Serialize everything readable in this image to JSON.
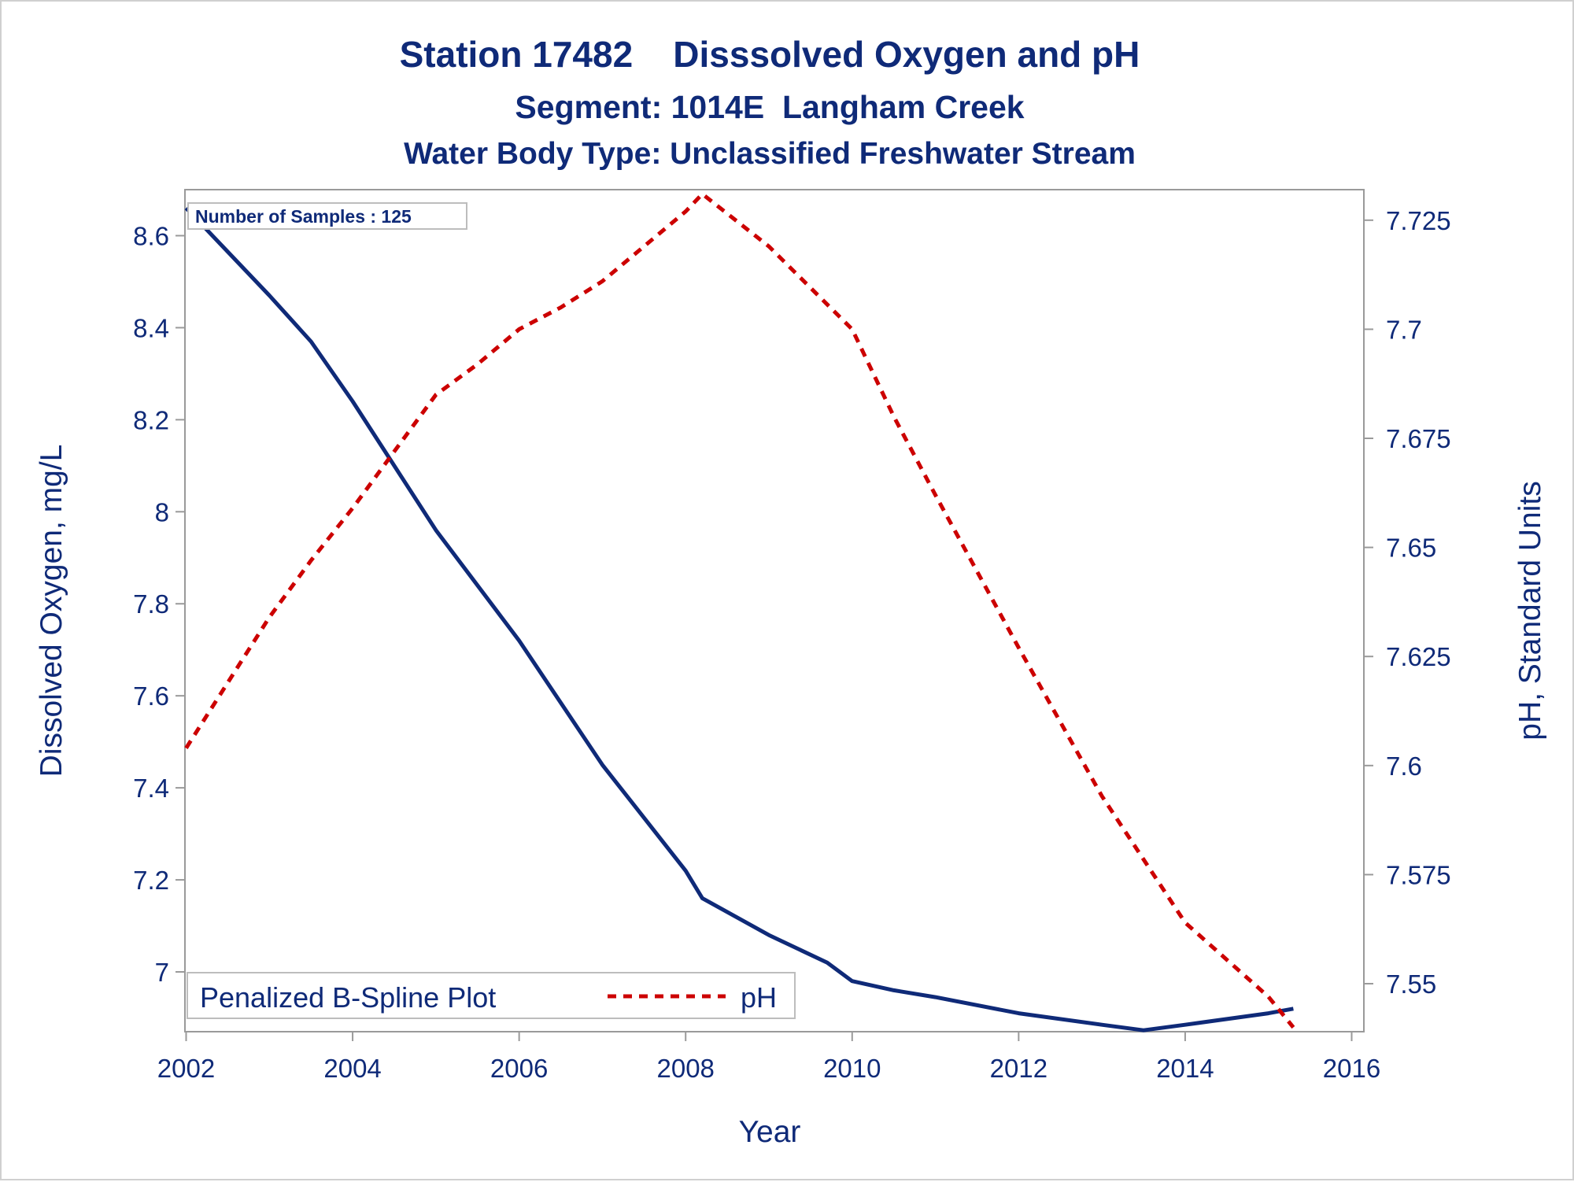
{
  "chart_data": {
    "type": "line",
    "title": "Station 17482    Disssolved Oxygen and pH",
    "subtitle": "Segment: 1014E  Langham Creek",
    "subtitle2": "Water Body Type: Unclassified Freshwater Stream",
    "xlabel": "Year",
    "ylabel": "Dissolved Oxygen, mg/L",
    "y2label": "pH, Standard Units",
    "xlim": [
      2002,
      2016
    ],
    "ylim": [
      6.87,
      8.7
    ],
    "y2lim": [
      7.539,
      7.732
    ],
    "x_ticks": [
      "2002",
      "2004",
      "2006",
      "2008",
      "2010",
      "2012",
      "2014",
      "2016"
    ],
    "y_ticks": [
      "7",
      "7.2",
      "7.4",
      "7.6",
      "7.8",
      "8",
      "8.2",
      "8.4",
      "8.6"
    ],
    "y2_ticks": [
      "7.55",
      "7.575",
      "7.6",
      "7.625",
      "7.65",
      "7.675",
      "7.7",
      "7.725"
    ],
    "annotation": "Number of Samples : 125",
    "legend": {
      "position": "bottom-left",
      "title": "Penalized B-Spline Plot",
      "entries": [
        "pH"
      ]
    },
    "colors": {
      "do": "#0f2a78",
      "ph": "#cc0000",
      "text": "#0f2a78",
      "axis": "#9a9a9a"
    },
    "series": [
      {
        "axis": "left",
        "style": "solid",
        "x": [
          2002.0,
          2003.0,
          2003.5,
          2004.0,
          2005.0,
          2006.0,
          2007.0,
          2008.0,
          2008.2,
          2009.0,
          2009.7,
          2010.0,
          2010.5,
          2011.0,
          2012.0,
          2013.0,
          2013.5,
          2014.0,
          2015.0,
          2015.3
        ],
        "values": [
          8.66,
          8.47,
          8.37,
          8.24,
          7.96,
          7.72,
          7.45,
          7.22,
          7.16,
          7.08,
          7.02,
          6.98,
          6.96,
          6.945,
          6.91,
          6.885,
          6.873,
          6.885,
          6.91,
          6.92
        ]
      },
      {
        "name": "pH",
        "axis": "right",
        "style": "dashed",
        "x": [
          2002.0,
          2003.0,
          2003.5,
          2004.0,
          2004.5,
          2005.0,
          2005.5,
          2006.0,
          2006.5,
          2007.0,
          2007.5,
          2008.0,
          2008.2,
          2009.0,
          2010.0,
          2010.5,
          2011.0,
          2012.0,
          2013.0,
          2014.0,
          2015.0,
          2015.3
        ],
        "values": [
          7.604,
          7.634,
          7.647,
          7.659,
          7.672,
          7.685,
          7.692,
          7.7,
          7.705,
          7.711,
          7.719,
          7.727,
          7.731,
          7.719,
          7.7,
          7.68,
          7.662,
          7.627,
          7.593,
          7.564,
          7.547,
          7.54
        ]
      }
    ]
  }
}
